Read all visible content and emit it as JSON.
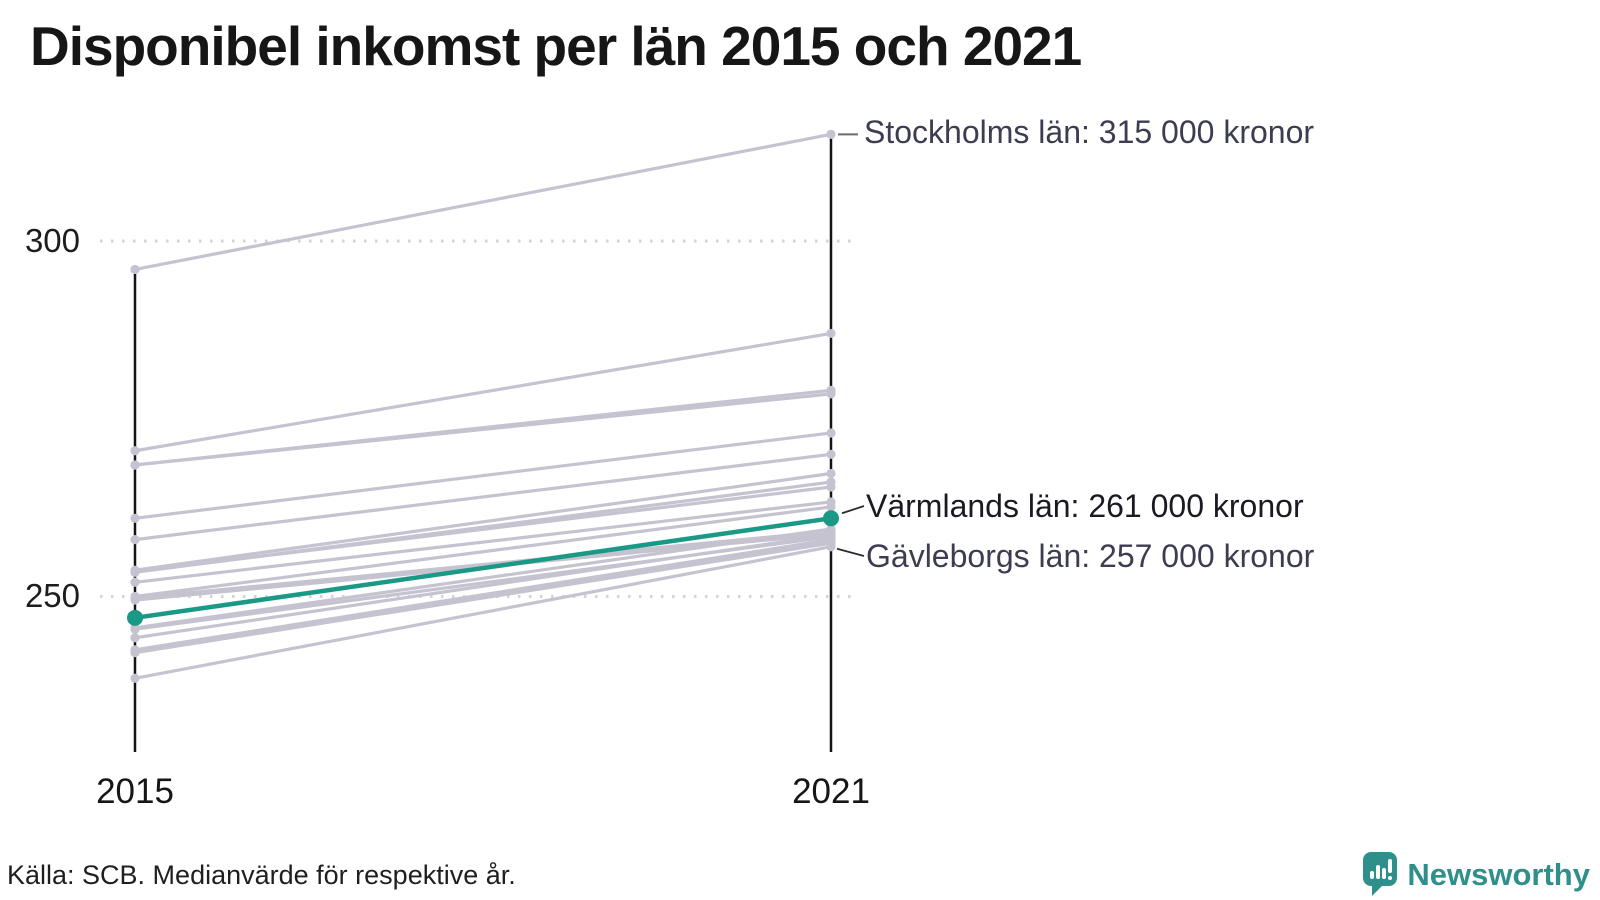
{
  "title": "Disponibel inkomst per län 2015 och 2021",
  "source": "Källa: SCB. Medianvärde för respektive år.",
  "branding": {
    "name": "Newsworthy",
    "color": "#2f8f8a"
  },
  "axis": {
    "years": [
      "2015",
      "2021"
    ],
    "ticks": [
      {
        "label": "300",
        "value": 300
      },
      {
        "label": "250",
        "value": 250
      }
    ]
  },
  "annotations": [
    {
      "text": "Stockholms län: 315 000 kronor",
      "year": "2021",
      "value": 315,
      "highlight": false
    },
    {
      "text": "Värmlands län: 261 000 kronor",
      "year": "2021",
      "value": 261,
      "highlight": true
    },
    {
      "text": "Gävleborgs län: 257 000 kronor",
      "year": "2021",
      "value": 257,
      "highlight": false
    }
  ],
  "colors": {
    "highlight": "#1b9987",
    "line": "#c6c3d1",
    "axis": "#141414",
    "grid": "#d3d3d3",
    "annotation": "#3d3d51",
    "annotation_highlight": "#1a1a23",
    "brand": "#2f8f8a"
  },
  "chart_data": {
    "type": "line",
    "subtype": "slopegraph",
    "x": [
      "2015",
      "2021"
    ],
    "unit": "thousand kronor (median disposable income)",
    "gridlines": [
      300,
      250
    ],
    "ylim": [
      235,
      318
    ],
    "series": [
      {
        "name": "Stockholms län",
        "values": [
          296,
          315
        ],
        "highlight": false
      },
      {
        "name": null,
        "values": [
          270.5,
          287
        ],
        "highlight": false
      },
      {
        "name": null,
        "values": [
          268.5,
          279
        ],
        "highlight": false
      },
      {
        "name": null,
        "values": [
          268.5,
          278.5
        ],
        "highlight": false
      },
      {
        "name": null,
        "values": [
          261,
          273
        ],
        "highlight": false
      },
      {
        "name": null,
        "values": [
          258,
          270
        ],
        "highlight": false
      },
      {
        "name": null,
        "values": [
          253.7,
          267.3
        ],
        "highlight": false
      },
      {
        "name": null,
        "values": [
          253.4,
          266.1
        ],
        "highlight": false
      },
      {
        "name": null,
        "values": [
          253.5,
          265.4
        ],
        "highlight": false
      },
      {
        "name": null,
        "values": [
          252,
          263.3
        ],
        "highlight": false
      },
      {
        "name": null,
        "values": [
          250,
          262.6
        ],
        "highlight": false
      },
      {
        "name": null,
        "values": [
          249.8,
          259.2
        ],
        "highlight": false
      },
      {
        "name": null,
        "values": [
          249.5,
          258.8
        ],
        "highlight": false
      },
      {
        "name": "Värmlands län",
        "values": [
          247,
          261
        ],
        "highlight": true
      },
      {
        "name": null,
        "values": [
          245.6,
          259.5
        ],
        "highlight": false
      },
      {
        "name": null,
        "values": [
          245.4,
          258.4
        ],
        "highlight": false
      },
      {
        "name": null,
        "values": [
          244.2,
          258.7
        ],
        "highlight": false
      },
      {
        "name": null,
        "values": [
          242.5,
          258
        ],
        "highlight": false
      },
      {
        "name": null,
        "values": [
          242.3,
          257.9
        ],
        "highlight": false
      },
      {
        "name": null,
        "values": [
          242.1,
          257.5
        ],
        "highlight": false
      },
      {
        "name": "Gävleborgs län",
        "values": [
          238.5,
          257
        ],
        "highlight": false
      }
    ]
  }
}
